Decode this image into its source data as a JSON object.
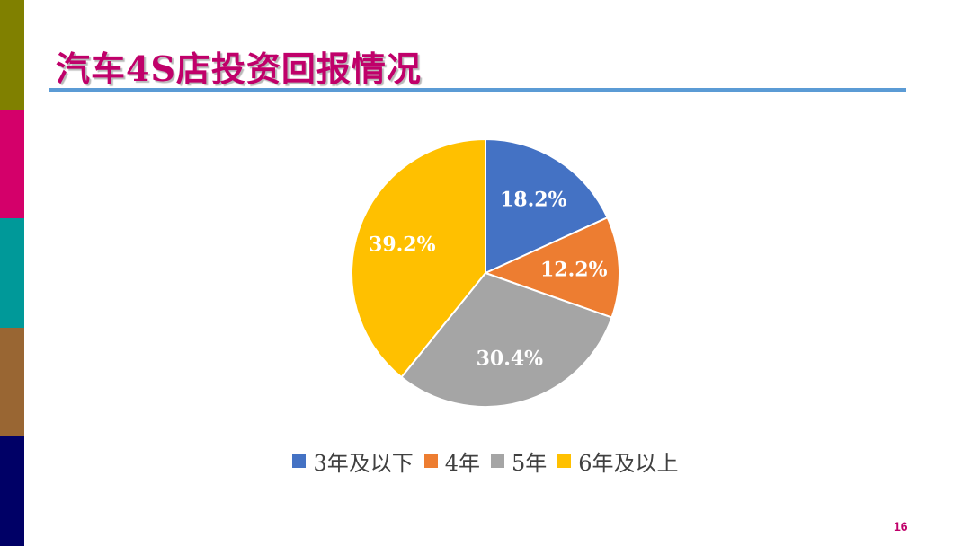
{
  "slide": {
    "title": "汽车4S店投资回报情况",
    "page_number": "16",
    "side_colors": [
      "#808000",
      "#d4006a",
      "#009999",
      "#996633",
      "#000066"
    ],
    "title_color": "#c0006a",
    "rule_color": "#5b9bd5"
  },
  "chart_data": {
    "type": "pie",
    "title": "",
    "legend_position": "bottom",
    "slices": [
      {
        "label": "3年及以下",
        "value": 18.2,
        "display": "18.2%",
        "color": "#4472c4"
      },
      {
        "label": "4年",
        "value": 12.2,
        "display": "12.2%",
        "color": "#ed7d31"
      },
      {
        "label": "5年",
        "value": 30.4,
        "display": "30.4%",
        "color": "#a5a5a5"
      },
      {
        "label": "6年及以上",
        "value": 39.2,
        "display": "39.2%",
        "color": "#ffc000"
      }
    ]
  }
}
